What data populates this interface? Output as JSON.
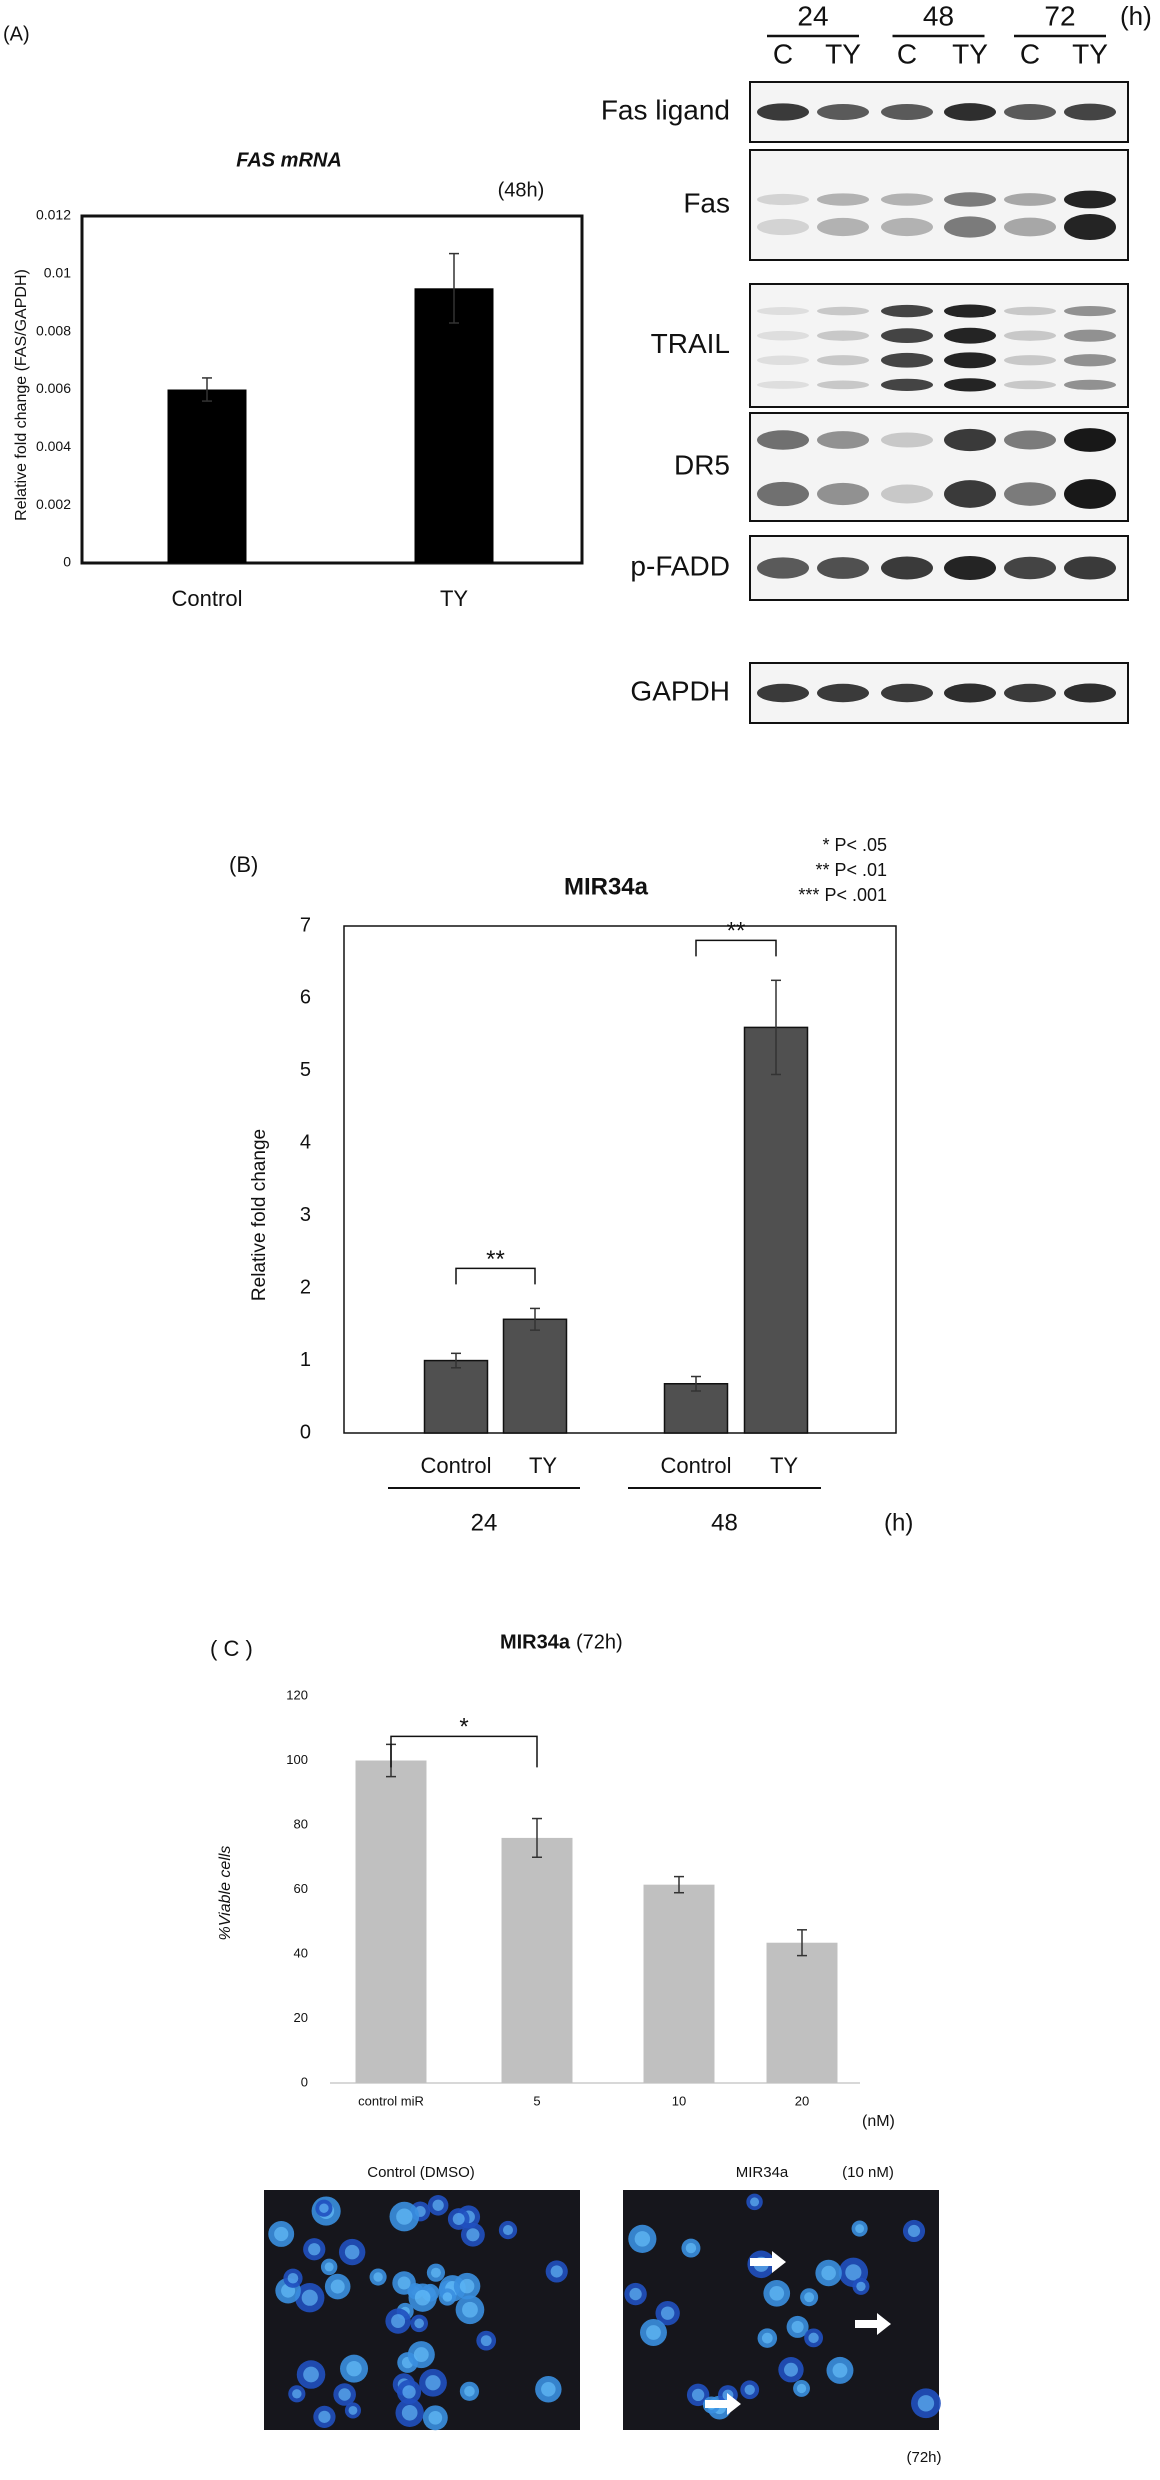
{
  "chart_data": [
    {
      "type": "bar",
      "panel_label": "(A)",
      "title": "FAS mRNA",
      "annotation": "(48h)",
      "y_label": "Relative fold change (FAS/GAPDH)",
      "categories": [
        "Control",
        "TY"
      ],
      "values": [
        0.006,
        0.0095
      ],
      "errors": [
        0.0004,
        0.0012
      ],
      "color": "#000000",
      "ylim": [
        0,
        0.012
      ],
      "yticks": [
        0,
        0.002,
        0.004,
        0.006,
        0.008,
        0.01,
        0.012
      ]
    },
    {
      "type": "bar",
      "panel_label": "(B)",
      "title": "MIR34a",
      "y_label": "Relative fold change",
      "notes": [
        "* P< .05",
        "** P< .01",
        "*** P< .001"
      ],
      "categories": [
        "Control",
        "TY",
        "Control",
        "TY"
      ],
      "groups": [
        "24",
        "48"
      ],
      "group_unit": "(h)",
      "values": [
        1.0,
        1.57,
        0.68,
        5.6
      ],
      "errors": [
        0.1,
        0.15,
        0.1,
        0.65
      ],
      "color": "#505050",
      "significance": [
        "**",
        "**"
      ],
      "ylim": [
        0,
        7
      ],
      "yticks": [
        0,
        1,
        2,
        3,
        4,
        5,
        6,
        7
      ]
    },
    {
      "type": "bar",
      "panel_label": "( C )",
      "title": "MIR34a",
      "subtitle": "(72h)",
      "y_label": "%Viable cells",
      "categories": [
        "control miR",
        "5",
        "10",
        "20"
      ],
      "x_unit": "(nM)",
      "values": [
        100,
        76,
        61.5,
        43.5
      ],
      "errors": [
        5,
        6,
        2.5,
        4
      ],
      "color": "#c0c0c0",
      "significance": [
        "*"
      ],
      "ylim": [
        0,
        120
      ],
      "yticks": [
        0,
        20,
        40,
        60,
        80,
        100,
        120
      ]
    }
  ],
  "blot": {
    "times": [
      "24",
      "48",
      "72"
    ],
    "time_unit": "(h)",
    "conditions": [
      "C",
      "TY",
      "C",
      "TY",
      "C",
      "TY"
    ],
    "rows": [
      "Fas ligand",
      "Fas",
      "TRAIL",
      "DR5",
      "p-FADD",
      "GAPDH"
    ]
  },
  "micrographs": {
    "left_label": "Control (DMSO)",
    "right_label": "MIR34a",
    "right_dose": "(10 nM)",
    "time": "(72h)"
  }
}
